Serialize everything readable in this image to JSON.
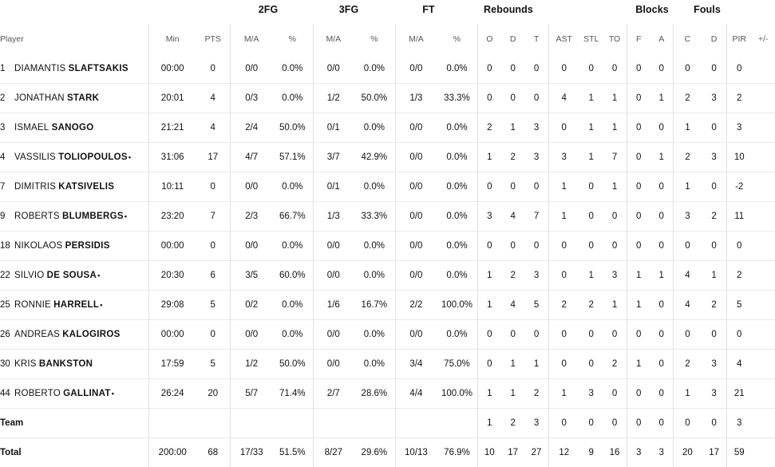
{
  "groups": {
    "fg2": "2FG",
    "fg3": "3FG",
    "ft": "FT",
    "rebounds": "Rebounds",
    "blocks": "Blocks",
    "fouls": "Fouls"
  },
  "headers": {
    "player": "Player",
    "min": "Min",
    "pts": "PTS",
    "fg2_ma": "M/A",
    "fg2_pct": "%",
    "fg3_ma": "M/A",
    "fg3_pct": "%",
    "ft_ma": "M/A",
    "ft_pct": "%",
    "reb_o": "O",
    "reb_d": "D",
    "reb_t": "T",
    "ast": "AST",
    "stl": "STL",
    "to": "TO",
    "blk_f": "F",
    "blk_a": "A",
    "foul_c": "C",
    "foul_d": "D",
    "pir": "PIR",
    "pm": "+/-"
  },
  "starter_mark": "•",
  "rows": [
    {
      "num": "1",
      "first": "DIAMANTIS",
      "last": "SLAFTSAKIS",
      "starter": false,
      "min": "00:00",
      "pts": "0",
      "fg2_ma": "0/0",
      "fg2_pct": "0.0%",
      "fg3_ma": "0/0",
      "fg3_pct": "0.0%",
      "ft_ma": "0/0",
      "ft_pct": "0.0%",
      "reb_o": "0",
      "reb_d": "0",
      "reb_t": "0",
      "ast": "0",
      "stl": "0",
      "to": "0",
      "blk_f": "0",
      "blk_a": "0",
      "foul_c": "0",
      "foul_d": "0",
      "pir": "0"
    },
    {
      "num": "2",
      "first": "JONATHAN",
      "last": "STARK",
      "starter": false,
      "min": "20:01",
      "pts": "4",
      "fg2_ma": "0/3",
      "fg2_pct": "0.0%",
      "fg3_ma": "1/2",
      "fg3_pct": "50.0%",
      "ft_ma": "1/3",
      "ft_pct": "33.3%",
      "reb_o": "0",
      "reb_d": "0",
      "reb_t": "0",
      "ast": "4",
      "stl": "1",
      "to": "1",
      "blk_f": "0",
      "blk_a": "1",
      "foul_c": "2",
      "foul_d": "3",
      "pir": "2"
    },
    {
      "num": "3",
      "first": "ISMAEL",
      "last": "SANOGO",
      "starter": false,
      "min": "21:21",
      "pts": "4",
      "fg2_ma": "2/4",
      "fg2_pct": "50.0%",
      "fg3_ma": "0/1",
      "fg3_pct": "0.0%",
      "ft_ma": "0/0",
      "ft_pct": "0.0%",
      "reb_o": "2",
      "reb_d": "1",
      "reb_t": "3",
      "ast": "0",
      "stl": "1",
      "to": "1",
      "blk_f": "0",
      "blk_a": "0",
      "foul_c": "1",
      "foul_d": "0",
      "pir": "3"
    },
    {
      "num": "4",
      "first": "VASSILIS",
      "last": "TOLIOPOULOS",
      "starter": true,
      "min": "31:06",
      "pts": "17",
      "fg2_ma": "4/7",
      "fg2_pct": "57.1%",
      "fg3_ma": "3/7",
      "fg3_pct": "42.9%",
      "ft_ma": "0/0",
      "ft_pct": "0.0%",
      "reb_o": "1",
      "reb_d": "2",
      "reb_t": "3",
      "ast": "3",
      "stl": "1",
      "to": "7",
      "blk_f": "0",
      "blk_a": "1",
      "foul_c": "2",
      "foul_d": "3",
      "pir": "10"
    },
    {
      "num": "7",
      "first": "DIMITRIS",
      "last": "KATSIVELIS",
      "starter": false,
      "min": "10:11",
      "pts": "0",
      "fg2_ma": "0/0",
      "fg2_pct": "0.0%",
      "fg3_ma": "0/1",
      "fg3_pct": "0.0%",
      "ft_ma": "0/0",
      "ft_pct": "0.0%",
      "reb_o": "0",
      "reb_d": "0",
      "reb_t": "0",
      "ast": "1",
      "stl": "0",
      "to": "1",
      "blk_f": "0",
      "blk_a": "0",
      "foul_c": "1",
      "foul_d": "0",
      "pir": "-2"
    },
    {
      "num": "9",
      "first": "ROBERTS",
      "last": "BLUMBERGS",
      "starter": true,
      "min": "23:20",
      "pts": "7",
      "fg2_ma": "2/3",
      "fg2_pct": "66.7%",
      "fg3_ma": "1/3",
      "fg3_pct": "33.3%",
      "ft_ma": "0/0",
      "ft_pct": "0.0%",
      "reb_o": "3",
      "reb_d": "4",
      "reb_t": "7",
      "ast": "1",
      "stl": "0",
      "to": "0",
      "blk_f": "0",
      "blk_a": "0",
      "foul_c": "3",
      "foul_d": "2",
      "pir": "11"
    },
    {
      "num": "18",
      "first": "NIKOLAOS",
      "last": "PERSIDIS",
      "starter": false,
      "min": "00:00",
      "pts": "0",
      "fg2_ma": "0/0",
      "fg2_pct": "0.0%",
      "fg3_ma": "0/0",
      "fg3_pct": "0.0%",
      "ft_ma": "0/0",
      "ft_pct": "0.0%",
      "reb_o": "0",
      "reb_d": "0",
      "reb_t": "0",
      "ast": "0",
      "stl": "0",
      "to": "0",
      "blk_f": "0",
      "blk_a": "0",
      "foul_c": "0",
      "foul_d": "0",
      "pir": "0"
    },
    {
      "num": "22",
      "first": "SILVIO",
      "last": "DE SOUSA",
      "starter": true,
      "min": "20:30",
      "pts": "6",
      "fg2_ma": "3/5",
      "fg2_pct": "60.0%",
      "fg3_ma": "0/0",
      "fg3_pct": "0.0%",
      "ft_ma": "0/0",
      "ft_pct": "0.0%",
      "reb_o": "1",
      "reb_d": "2",
      "reb_t": "3",
      "ast": "0",
      "stl": "1",
      "to": "3",
      "blk_f": "1",
      "blk_a": "1",
      "foul_c": "4",
      "foul_d": "1",
      "pir": "2"
    },
    {
      "num": "25",
      "first": "RONNIE",
      "last": "HARRELL",
      "starter": true,
      "min": "29:08",
      "pts": "5",
      "fg2_ma": "0/2",
      "fg2_pct": "0.0%",
      "fg3_ma": "1/6",
      "fg3_pct": "16.7%",
      "ft_ma": "2/2",
      "ft_pct": "100.0%",
      "reb_o": "1",
      "reb_d": "4",
      "reb_t": "5",
      "ast": "2",
      "stl": "2",
      "to": "1",
      "blk_f": "1",
      "blk_a": "0",
      "foul_c": "4",
      "foul_d": "2",
      "pir": "5"
    },
    {
      "num": "26",
      "first": "ANDREAS",
      "last": "KALOGIROS",
      "starter": false,
      "min": "00:00",
      "pts": "0",
      "fg2_ma": "0/0",
      "fg2_pct": "0.0%",
      "fg3_ma": "0/0",
      "fg3_pct": "0.0%",
      "ft_ma": "0/0",
      "ft_pct": "0.0%",
      "reb_o": "0",
      "reb_d": "0",
      "reb_t": "0",
      "ast": "0",
      "stl": "0",
      "to": "0",
      "blk_f": "0",
      "blk_a": "0",
      "foul_c": "0",
      "foul_d": "0",
      "pir": "0"
    },
    {
      "num": "30",
      "first": "KRIS",
      "last": "BANKSTON",
      "starter": false,
      "min": "17:59",
      "pts": "5",
      "fg2_ma": "1/2",
      "fg2_pct": "50.0%",
      "fg3_ma": "0/0",
      "fg3_pct": "0.0%",
      "ft_ma": "3/4",
      "ft_pct": "75.0%",
      "reb_o": "0",
      "reb_d": "1",
      "reb_t": "1",
      "ast": "0",
      "stl": "0",
      "to": "2",
      "blk_f": "1",
      "blk_a": "0",
      "foul_c": "2",
      "foul_d": "3",
      "pir": "4"
    },
    {
      "num": "44",
      "first": "ROBERTO",
      "last": "GALLINAT",
      "starter": true,
      "min": "26:24",
      "pts": "20",
      "fg2_ma": "5/7",
      "fg2_pct": "71.4%",
      "fg3_ma": "2/7",
      "fg3_pct": "28.6%",
      "ft_ma": "4/4",
      "ft_pct": "100.0%",
      "reb_o": "1",
      "reb_d": "1",
      "reb_t": "2",
      "ast": "1",
      "stl": "3",
      "to": "0",
      "blk_f": "0",
      "blk_a": "0",
      "foul_c": "1",
      "foul_d": "3",
      "pir": "21"
    }
  ],
  "team": {
    "label": "Team",
    "min": "",
    "pts": "",
    "fg2_ma": "",
    "fg2_pct": "",
    "fg3_ma": "",
    "fg3_pct": "",
    "ft_ma": "",
    "ft_pct": "",
    "reb_o": "1",
    "reb_d": "2",
    "reb_t": "3",
    "ast": "0",
    "stl": "0",
    "to": "0",
    "blk_f": "0",
    "blk_a": "0",
    "foul_c": "0",
    "foul_d": "0",
    "pir": "3"
  },
  "total": {
    "label": "Total",
    "min": "200:00",
    "pts": "68",
    "fg2_ma": "17/33",
    "fg2_pct": "51.5%",
    "fg3_ma": "8/27",
    "fg3_pct": "29.6%",
    "ft_ma": "10/13",
    "ft_pct": "76.9%",
    "reb_o": "10",
    "reb_d": "17",
    "reb_t": "27",
    "ast": "12",
    "stl": "9",
    "to": "16",
    "blk_f": "3",
    "blk_a": "3",
    "foul_c": "20",
    "foul_d": "17",
    "pir": "59"
  }
}
